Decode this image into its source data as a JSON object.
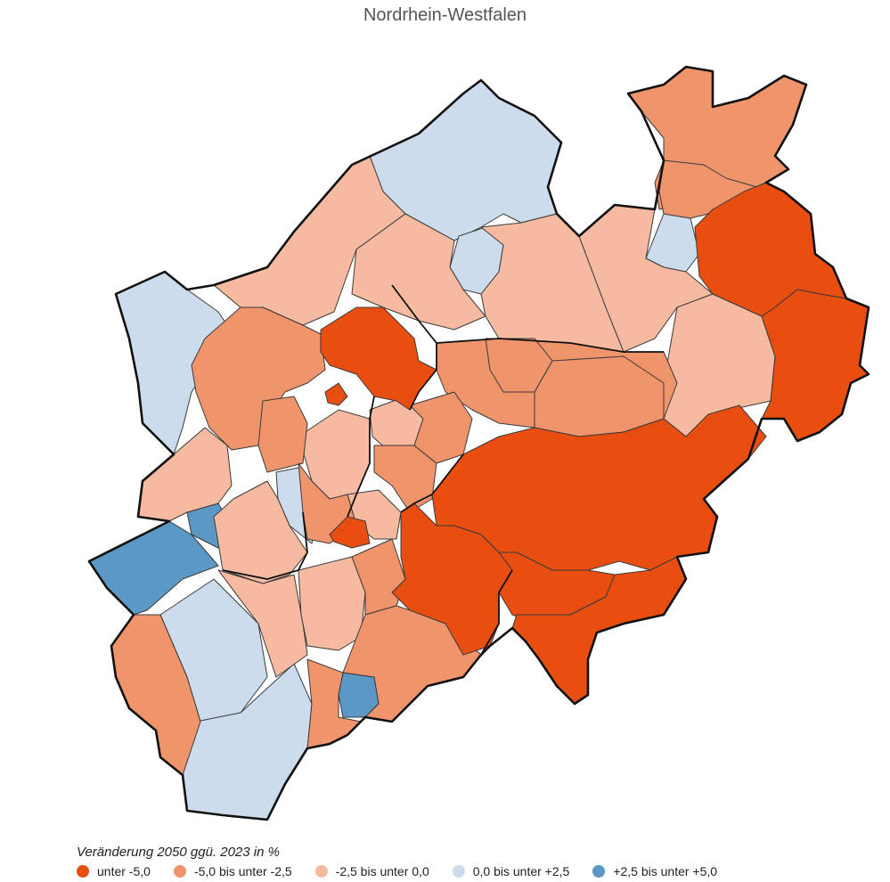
{
  "title": "Nordrhein-Westfalen",
  "legend": {
    "title": "Veränderung 2050 ggü. 2023 in %",
    "items": [
      {
        "label": "unter -5,0",
        "color": "#e84e10"
      },
      {
        "label": "-5,0 bis unter -2,5",
        "color": "#f0946c"
      },
      {
        "label": "-2,5 bis unter 0,0",
        "color": "#f5baa0"
      },
      {
        "label": "0,0 bis unter +2,5",
        "color": "#cddcec"
      },
      {
        "label": "+2,5 bis unter +5,0",
        "color": "#5b98c6"
      }
    ]
  }
}
